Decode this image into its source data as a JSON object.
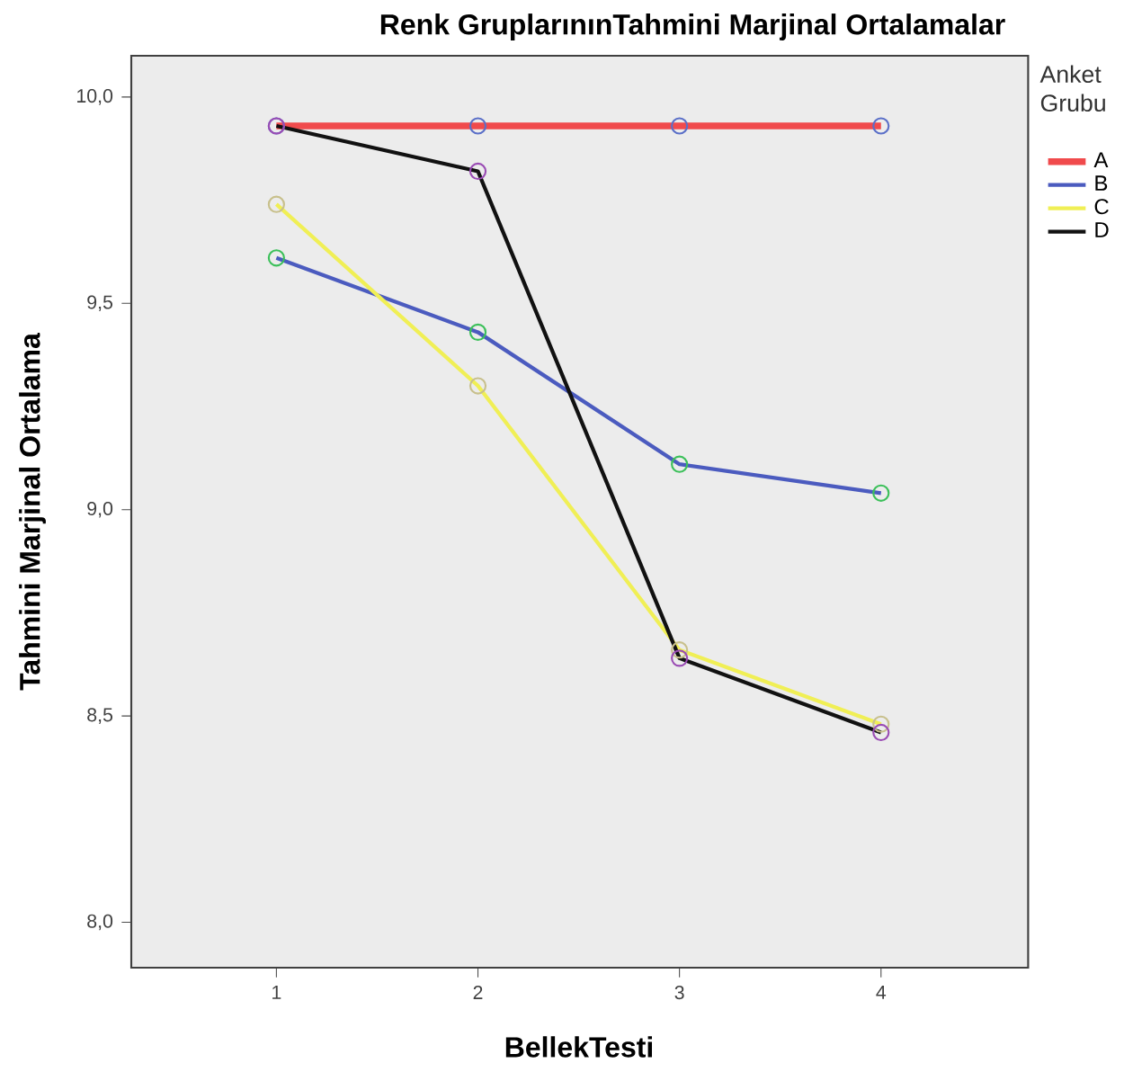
{
  "chart_data": {
    "type": "line",
    "title": "Renk GruplarınınTahmini Marjinal Ortalamalar",
    "xlabel": "BellekTesti",
    "ylabel": "Tahmini Marjinal Ortalama",
    "legend_title": "Anket Grubu",
    "legend": "right",
    "marker": "circle",
    "line_style": "solid",
    "x": [
      1,
      2,
      3,
      4
    ],
    "xlim": [
      0.28,
      4.73
    ],
    "xticks": [
      1,
      2,
      3,
      4
    ],
    "ylim": [
      7.89,
      10.1
    ],
    "yticks": [
      {
        "value": 8.0,
        "label": "8,0"
      },
      {
        "value": 8.5,
        "label": "8,5"
      },
      {
        "value": 9.0,
        "label": "9,0"
      },
      {
        "value": 9.5,
        "label": "9,5"
      },
      {
        "value": 10.0,
        "label": "10,0"
      }
    ],
    "series": [
      {
        "name": "A",
        "color": "#f04a4c",
        "values": [
          9.93,
          9.93,
          9.93,
          9.93
        ],
        "colors": [
          "#5a6fc8",
          "#5a6fc8",
          "#5a6fc8",
          "#5a6fc8"
        ]
      },
      {
        "name": "B",
        "color": "#4b5bbf",
        "values": [
          9.61,
          9.43,
          9.11,
          9.04
        ],
        "colors": [
          "#3cc05a",
          "#3cc05a",
          "#3cc05a",
          "#3cc05a"
        ]
      },
      {
        "name": "C",
        "color": "#f0ef55",
        "values": [
          9.74,
          9.3,
          8.66,
          8.48
        ],
        "colors": [
          "#c8c08c",
          "#c8c08c",
          "#c8c08c",
          "#c8c08c"
        ]
      },
      {
        "name": "D",
        "color": "#111111",
        "values": [
          9.93,
          9.82,
          8.64,
          8.46
        ],
        "colors": [
          "#9a4cb4",
          "#9a4cb4",
          "#9a4cb4",
          "#9a4cb4"
        ]
      }
    ]
  }
}
